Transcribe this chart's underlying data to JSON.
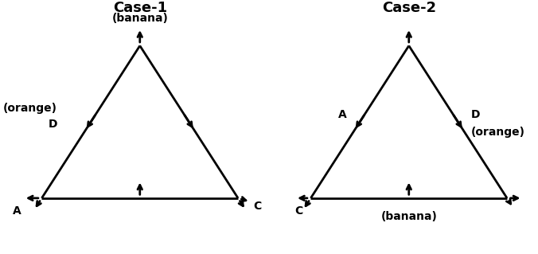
{
  "case1_title": "Case-1",
  "case2_title": "Case-2",
  "case1_labels": {
    "top": "(banana)",
    "bottom_left": "A",
    "bottom_right": "C",
    "mid_left_D": "D",
    "mid_left_orange": "(orange)"
  },
  "case2_labels": {
    "bottom_left": "C",
    "bottom_mid": "(banana)",
    "mid_left": "A",
    "mid_right_D": "D",
    "mid_right_orange": "(orange)"
  },
  "bg_color": "#ffffff",
  "text_color": "#000000",
  "title_fontsize": 13,
  "label_fontsize": 10
}
